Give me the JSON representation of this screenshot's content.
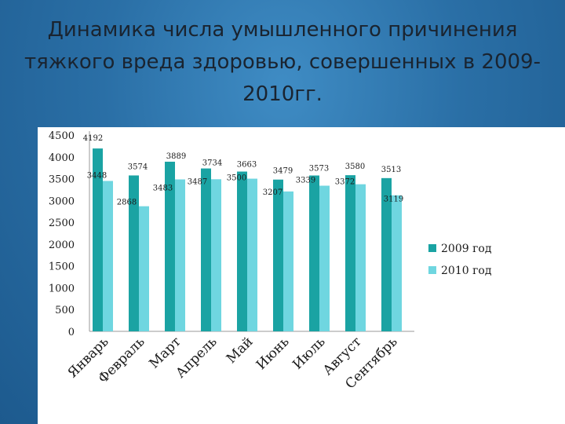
{
  "title": "Динамика числа умышленного причинения тяжкого вреда здоровью, совершенных в 2009-2010гг.",
  "colors": {
    "s2009": "#1aa3a3",
    "s2010": "#6fd6e0"
  },
  "chart_data": {
    "type": "bar",
    "categories": [
      "Январь",
      "Февраль",
      "Март",
      "Апрель",
      "Май",
      "Июнь",
      "Июль",
      "Август",
      "Сентябрь"
    ],
    "series": [
      {
        "name": "2009 год",
        "values": [
          4192,
          3574,
          3889,
          3734,
          3663,
          3479,
          3573,
          3580,
          3513
        ]
      },
      {
        "name": "2010 год",
        "values": [
          3448,
          2868,
          3483,
          3487,
          3500,
          3207,
          3339,
          3372,
          3119
        ]
      }
    ],
    "ylim": [
      0,
      4500
    ],
    "yticks": [
      "0",
      "500",
      "1000",
      "1500",
      "2000",
      "2500",
      "3000",
      "3500",
      "4000",
      "4500"
    ],
    "legend_position": "right"
  }
}
